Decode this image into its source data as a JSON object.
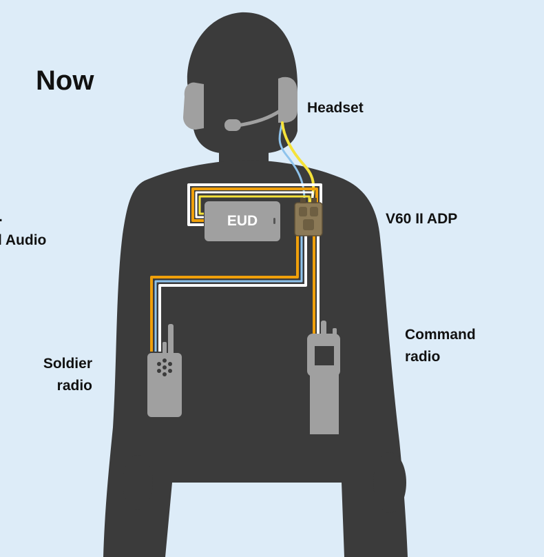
{
  "title": "Now",
  "labels": {
    "headset": "Headset",
    "adp": "V60 II ADP",
    "eud": "EUD",
    "command_radio": [
      "Command",
      "radio"
    ],
    "soldier_radio": [
      "Soldier",
      "radio"
    ],
    "partial_left": "l Audio",
    "partial_left_top": "."
  },
  "colors": {
    "background": "#ddecf8",
    "silhouette": "#3b3b3b",
    "device_gray": "#a0a0a0",
    "cable_orange": "#f0a00a",
    "cable_yellow": "#f5e23a",
    "cable_blue": "#8ec3ec",
    "cable_white": "#ffffff",
    "adp_tan": "#8c7a57"
  },
  "icons": [
    "soldier-silhouette",
    "headset-icon",
    "eud-device-icon",
    "adp-device-icon",
    "soldier-radio-icon",
    "command-radio-icon"
  ]
}
